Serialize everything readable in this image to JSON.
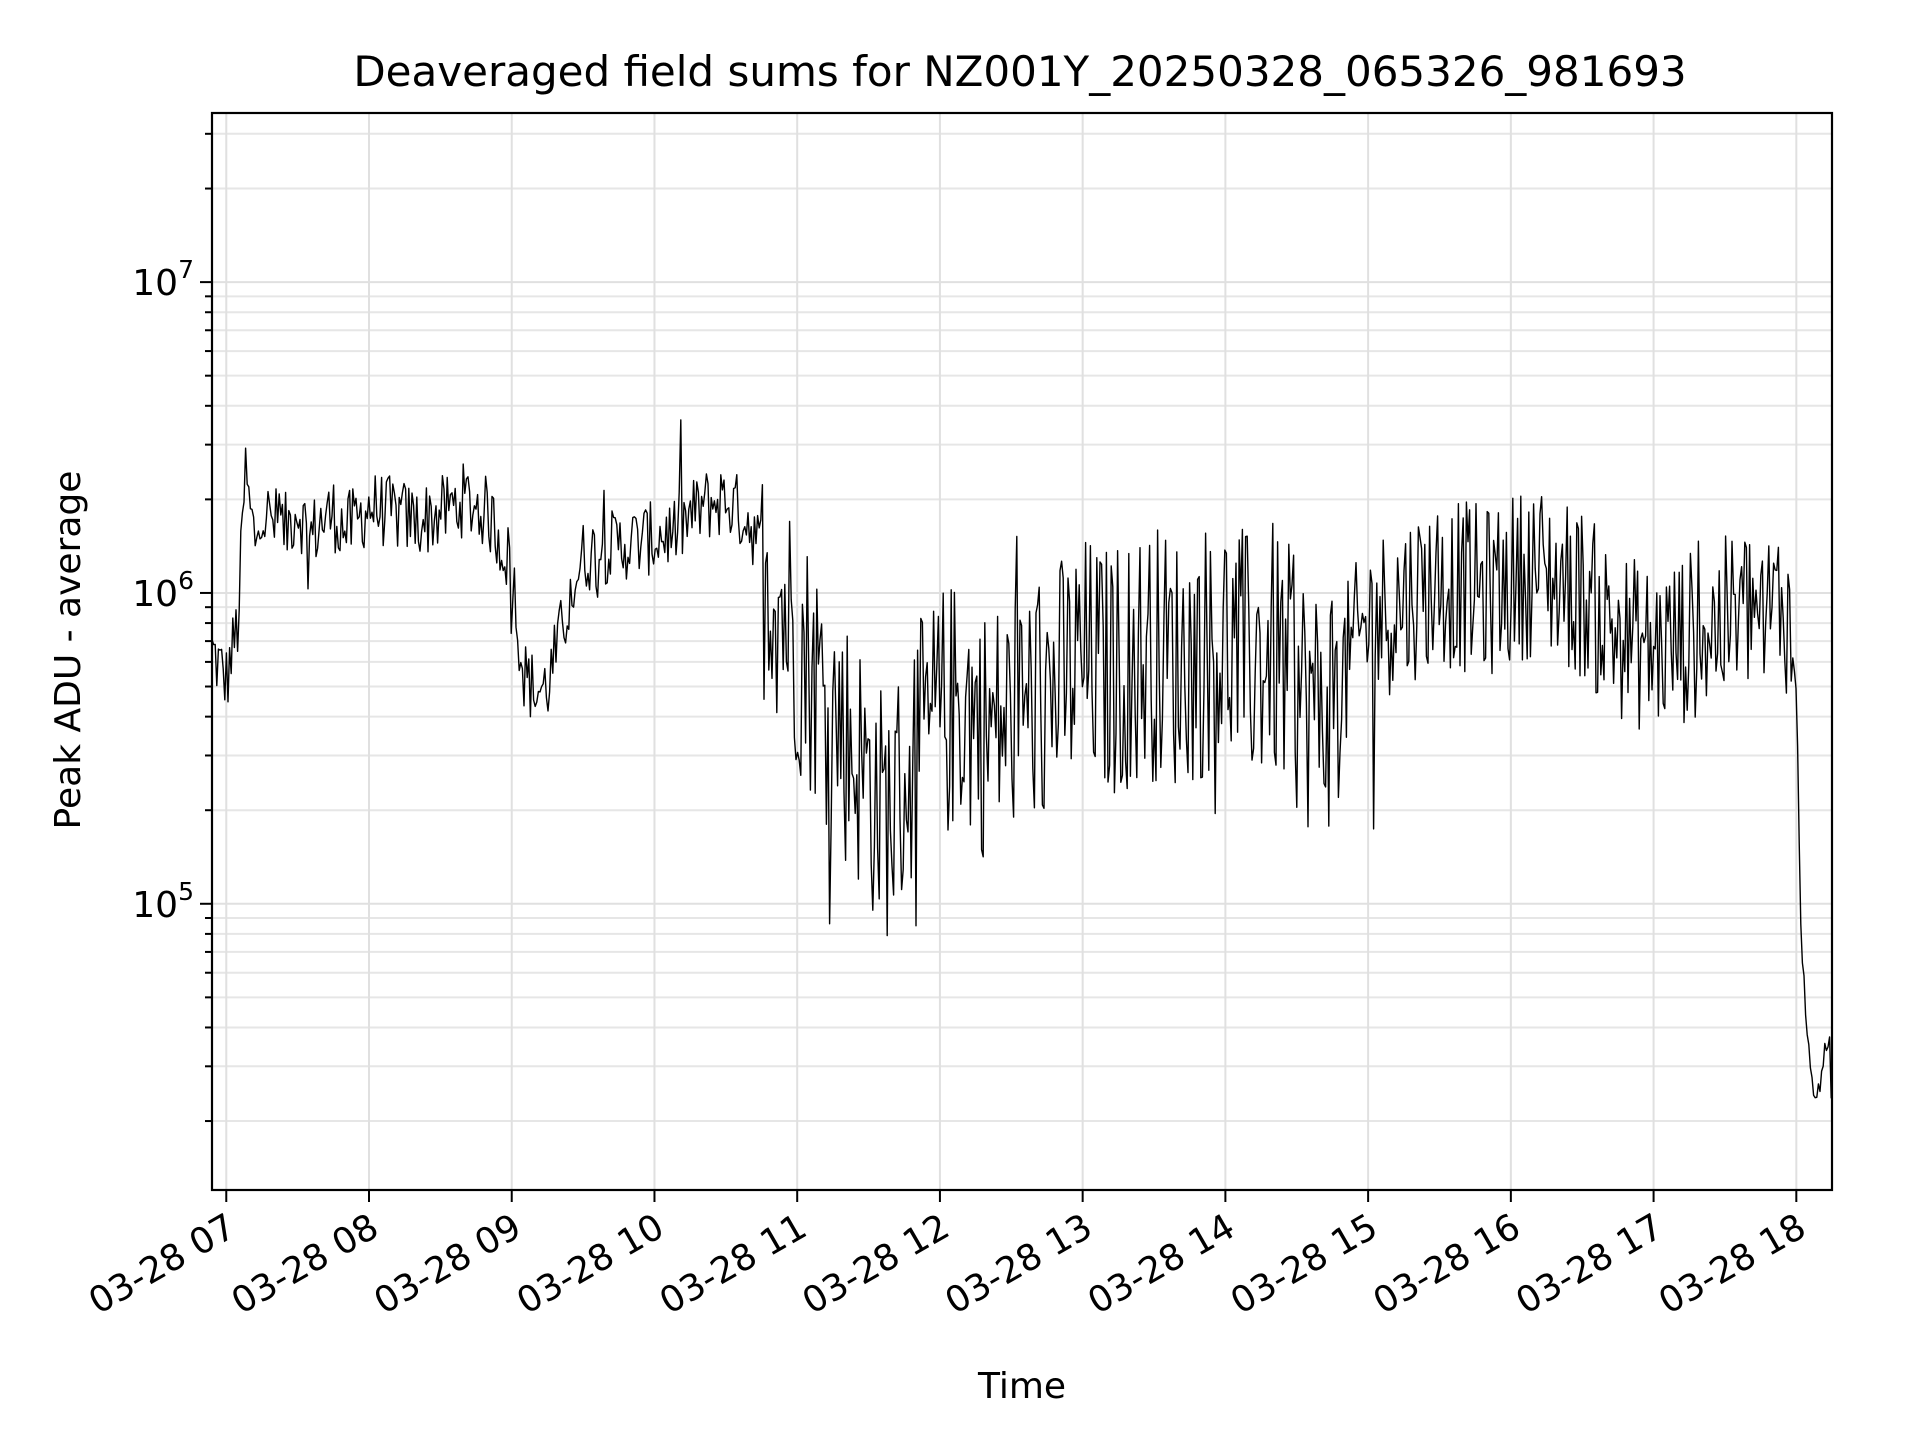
{
  "chart_data": {
    "type": "line",
    "title": "Deaveraged field sums for NZ001Y_20250328_065326_981693",
    "xlabel": "Time",
    "ylabel": "Peak ADU - average",
    "yscale": "log",
    "grid": true,
    "xlim": [
      "2025-03-28 06:54",
      "2025-03-28 18:15"
    ],
    "ylim": [
      12000,
      35000000
    ],
    "x_ticks": [
      {
        "value": "2025-03-28 07:00",
        "label": "03-28 07"
      },
      {
        "value": "2025-03-28 08:00",
        "label": "03-28 08"
      },
      {
        "value": "2025-03-28 09:00",
        "label": "03-28 09"
      },
      {
        "value": "2025-03-28 10:00",
        "label": "03-28 10"
      },
      {
        "value": "2025-03-28 11:00",
        "label": "03-28 11"
      },
      {
        "value": "2025-03-28 12:00",
        "label": "03-28 12"
      },
      {
        "value": "2025-03-28 13:00",
        "label": "03-28 13"
      },
      {
        "value": "2025-03-28 14:00",
        "label": "03-28 14"
      },
      {
        "value": "2025-03-28 15:00",
        "label": "03-28 15"
      },
      {
        "value": "2025-03-28 16:00",
        "label": "03-28 16"
      },
      {
        "value": "2025-03-28 17:00",
        "label": "03-28 17"
      },
      {
        "value": "2025-03-28 18:00",
        "label": "03-28 18"
      }
    ],
    "y_ticks": [
      {
        "value": 100000,
        "base": "10",
        "exp": "5"
      },
      {
        "value": 1000000,
        "base": "10",
        "exp": "6"
      },
      {
        "value": 10000000,
        "base": "10",
        "exp": "7"
      }
    ],
    "series": [
      {
        "x": [
          "2025-03-28 06:54",
          "2025-03-28 07:00",
          "2025-03-28 07:05",
          "2025-03-28 07:08",
          "2025-03-28 07:10",
          "2025-03-28 07:12",
          "2025-03-28 07:15",
          "2025-03-28 07:20",
          "2025-03-28 07:25",
          "2025-03-28 07:30",
          "2025-03-28 07:35",
          "2025-03-28 07:40",
          "2025-03-28 07:45",
          "2025-03-28 07:50",
          "2025-03-28 07:55",
          "2025-03-28 08:00",
          "2025-03-28 08:10",
          "2025-03-28 08:20",
          "2025-03-28 08:30",
          "2025-03-28 08:40",
          "2025-03-28 08:50",
          "2025-03-28 08:55",
          "2025-03-28 09:00",
          "2025-03-28 09:05",
          "2025-03-28 09:10",
          "2025-03-28 09:15",
          "2025-03-28 09:20",
          "2025-03-28 09:25",
          "2025-03-28 09:30",
          "2025-03-28 09:40",
          "2025-03-28 09:50",
          "2025-03-28 10:00",
          "2025-03-28 10:10",
          "2025-03-28 10:20",
          "2025-03-28 10:30",
          "2025-03-28 10:40",
          "2025-03-28 10:50",
          "2025-03-28 11:00",
          "2025-03-28 11:10",
          "2025-03-28 11:20",
          "2025-03-28 11:30",
          "2025-03-28 11:35",
          "2025-03-28 11:40",
          "2025-03-28 11:50",
          "2025-03-28 12:00",
          "2025-03-28 12:10",
          "2025-03-28 12:20",
          "2025-03-28 12:30",
          "2025-03-28 12:40",
          "2025-03-28 12:50",
          "2025-03-28 13:00",
          "2025-03-28 13:10",
          "2025-03-28 13:20",
          "2025-03-28 13:30",
          "2025-03-28 13:40",
          "2025-03-28 13:50",
          "2025-03-28 14:00",
          "2025-03-28 14:10",
          "2025-03-28 14:20",
          "2025-03-28 14:30",
          "2025-03-28 14:40",
          "2025-03-28 14:50",
          "2025-03-28 15:00",
          "2025-03-28 15:10",
          "2025-03-28 15:20",
          "2025-03-28 15:30",
          "2025-03-28 15:40",
          "2025-03-28 15:50",
          "2025-03-28 16:00",
          "2025-03-28 16:10",
          "2025-03-28 16:20",
          "2025-03-28 16:30",
          "2025-03-28 16:40",
          "2025-03-28 16:50",
          "2025-03-28 17:00",
          "2025-03-28 17:10",
          "2025-03-28 17:20",
          "2025-03-28 17:30",
          "2025-03-28 17:40",
          "2025-03-28 17:50",
          "2025-03-28 17:55",
          "2025-03-28 18:00",
          "2025-03-28 18:02",
          "2025-03-28 18:04",
          "2025-03-28 18:06",
          "2025-03-28 18:08",
          "2025-03-28 18:10",
          "2025-03-28 18:12",
          "2025-03-28 18:14",
          "2025-03-28 18:15"
        ],
        "y": [
          650000,
          520000,
          800000,
          2500000,
          1800000,
          1500000,
          1800000,
          1700000,
          1600000,
          1900000,
          1500000,
          1700000,
          1800000,
          1600000,
          1700000,
          1900000,
          1800000,
          1700000,
          1800000,
          2000000,
          1800000,
          1500000,
          1200000,
          550000,
          480000,
          500000,
          700000,
          1000000,
          1300000,
          1400000,
          1450000,
          1500000,
          1600000,
          1900000,
          2000000,
          1700000,
          1100000,
          700000,
          500000,
          350000,
          250000,
          200000,
          200000,
          300000,
          400000,
          450000,
          350000,
          400000,
          450000,
          500000,
          600000,
          550000,
          600000,
          650000,
          600000,
          650000,
          700000,
          600000,
          650000,
          500000,
          400000,
          550000,
          800000,
          900000,
          1000000,
          1100000,
          1050000,
          1000000,
          1100000,
          1200000,
          1100000,
          1000000,
          800000,
          700000,
          650000,
          700000,
          750000,
          800000,
          900000,
          850000,
          1000000,
          500000,
          80000,
          45000,
          28000,
          24000,
          25000,
          36000,
          35000,
          18000
        ]
      }
    ],
    "annotations": [],
    "legend": "none"
  }
}
